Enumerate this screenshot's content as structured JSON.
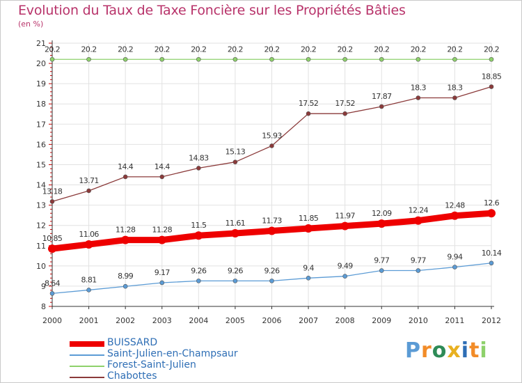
{
  "title": "Evolution du Taux de Taxe Foncière sur les Propriétés Bâties",
  "subtitle": "(en %)",
  "colors": {
    "title": "#b8336a",
    "axis": "#333333",
    "tick_mark": "#cc0000",
    "grid": "#e2e2e2"
  },
  "chart_data": {
    "type": "line",
    "x": [
      "2000",
      "2001",
      "2002",
      "2003",
      "2004",
      "2005",
      "2006",
      "2007",
      "2008",
      "2009",
      "2010",
      "2011",
      "2012"
    ],
    "yticks": [
      "8",
      "9",
      "10",
      "11",
      "12",
      "13",
      "14",
      "15",
      "16",
      "17",
      "18",
      "19",
      "20",
      "21"
    ],
    "ylim": [
      8,
      21
    ],
    "grid": true,
    "legend_position": "bottom-left",
    "series": [
      {
        "name": "BUISSARD",
        "color": "#ee0000",
        "emphasis": "thick",
        "values": [
          10.85,
          11.06,
          11.28,
          11.28,
          11.5,
          11.61,
          11.73,
          11.85,
          11.97,
          12.09,
          12.24,
          12.48,
          12.6
        ],
        "labels": [
          "10.85",
          "11.06",
          "11.28",
          "11.28",
          "11.5",
          "11.61",
          "11.73",
          "11.85",
          "11.97",
          "12.09",
          "12.24",
          "12.48",
          "12.6"
        ]
      },
      {
        "name": "Saint-Julien-en-Champsaur",
        "color": "#5b9bd5",
        "emphasis": "normal",
        "values": [
          8.64,
          8.81,
          8.99,
          9.17,
          9.26,
          9.26,
          9.26,
          9.4,
          9.49,
          9.77,
          9.77,
          9.94,
          10.14
        ],
        "labels": [
          "8.64",
          "8.81",
          "8.99",
          "9.17",
          "9.26",
          "9.26",
          "9.26",
          "9.4",
          "9.49",
          "9.77",
          "9.77",
          "9.94",
          "10.14"
        ]
      },
      {
        "name": "Forest-Saint-Julien",
        "color": "#8ed16b",
        "emphasis": "normal",
        "values": [
          20.2,
          20.2,
          20.2,
          20.2,
          20.2,
          20.2,
          20.2,
          20.2,
          20.2,
          20.2,
          20.2,
          20.2,
          20.2
        ],
        "labels": [
          "20.2",
          "20.2",
          "20.2",
          "20.2",
          "20.2",
          "20.2",
          "20.2",
          "20.2",
          "20.2",
          "20.2",
          "20.2",
          "20.2",
          "20.2"
        ]
      },
      {
        "name": "Chabottes",
        "color": "#8b3a3a",
        "emphasis": "normal",
        "values": [
          13.18,
          13.71,
          14.4,
          14.4,
          14.83,
          15.13,
          15.93,
          17.52,
          17.52,
          17.87,
          18.3,
          18.3,
          18.85
        ],
        "labels": [
          "13.18",
          "13.71",
          "14.4",
          "14.4",
          "14.83",
          "15.13",
          "15.93",
          "17.52",
          "17.52",
          "17.87",
          "18.3",
          "18.3",
          "18.85"
        ]
      }
    ]
  },
  "logo": {
    "text": "Proxiti",
    "letter_colors": [
      "#5b9bd5",
      "#f28c28",
      "#2e8b57",
      "#e8b020",
      "#2e6eb5",
      "#f28c28",
      "#8ed16b"
    ]
  }
}
